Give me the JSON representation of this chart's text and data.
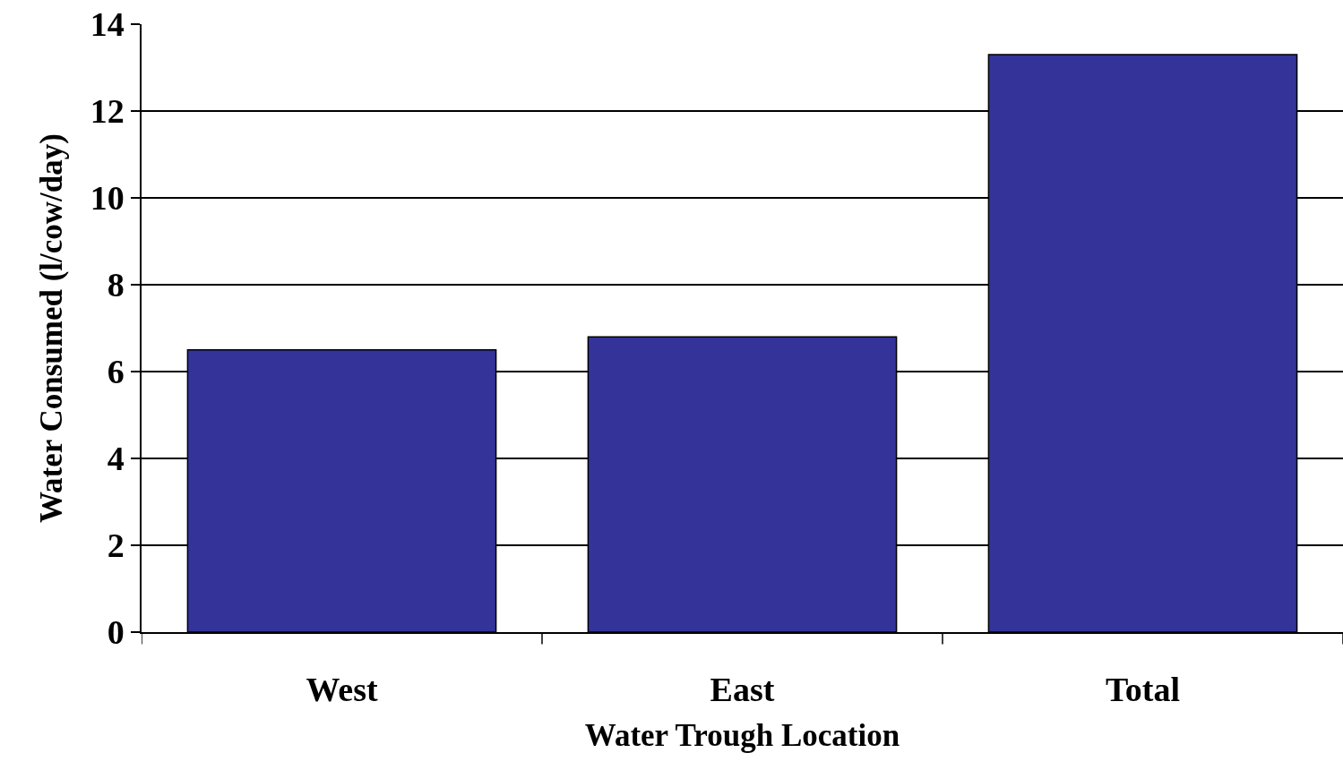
{
  "chart_data": {
    "type": "bar",
    "xlabel": "Water Trough Location",
    "ylabel": "Water Consumed (l/cow/day)",
    "categories": [
      "West",
      "East",
      "Total"
    ],
    "values": [
      6.5,
      6.8,
      13.3
    ],
    "color": "#333399",
    "ylim": [
      0,
      14
    ],
    "yticks": [
      0,
      2,
      4,
      6,
      8,
      10,
      12,
      14
    ],
    "grid": "y"
  }
}
